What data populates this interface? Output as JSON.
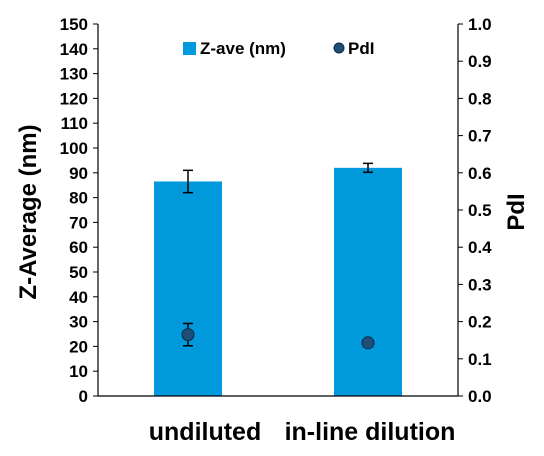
{
  "chart_data": {
    "type": "bar",
    "categories": [
      "undiluted",
      "in-line dilution"
    ],
    "series": [
      {
        "name": "Z-ave (nm)",
        "kind": "bar",
        "axis": "left",
        "color": "#0099DB",
        "values": [
          86.5,
          92
        ],
        "errors": [
          4.5,
          1.8
        ]
      },
      {
        "name": "PdI",
        "kind": "scatter",
        "axis": "right",
        "color": "#1F4E79",
        "values": [
          0.165,
          0.143
        ],
        "errors": [
          0.03,
          0.005
        ]
      }
    ],
    "ylabel": "Z-Average (nm)",
    "y2label": "PdI",
    "ylim": [
      0,
      150
    ],
    "y_ticks": [
      "0",
      "10",
      "20",
      "30",
      "40",
      "50",
      "60",
      "70",
      "80",
      "90",
      "100",
      "110",
      "120",
      "130",
      "140",
      "150"
    ],
    "y2lim": [
      0,
      1.0
    ],
    "y2_ticks": [
      "0.0",
      "0.1",
      "0.2",
      "0.3",
      "0.4",
      "0.5",
      "0.6",
      "0.7",
      "0.8",
      "0.9",
      "1.0"
    ],
    "grid": false,
    "legend_position": "top-center"
  }
}
